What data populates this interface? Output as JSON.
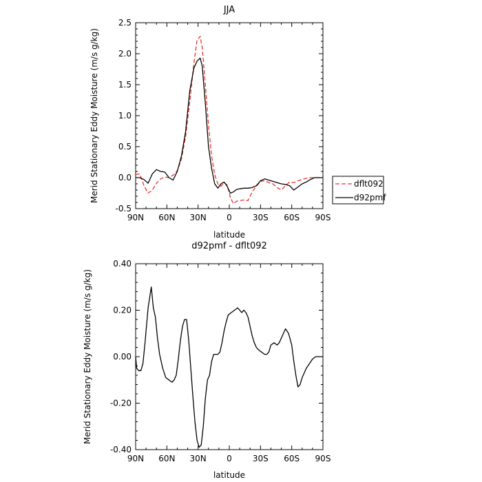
{
  "colors": {
    "dflt": "#e8322b",
    "d92": "#000000"
  },
  "chart_data": [
    {
      "type": "line",
      "title": "JJA",
      "xlabel": "latitude",
      "ylabel": "Merid Stationary Eddy Moisture (m/s g/kg)",
      "xlim": [
        -90,
        90
      ],
      "ylim": [
        -0.5,
        2.5
      ],
      "xticks": [
        -90,
        -60,
        -30,
        0,
        30,
        60,
        90
      ],
      "xtick_labels": [
        "90N",
        "60N",
        "30N",
        "0",
        "30S",
        "60S",
        "90S"
      ],
      "yticks": [
        -0.5,
        0.0,
        0.5,
        1.0,
        1.5,
        2.0,
        2.5
      ],
      "ytick_labels": [
        "-0.5",
        "0.0",
        "0.5",
        "1.0",
        "1.5",
        "2.0",
        "2.5"
      ],
      "legend_position": "right",
      "series": [
        {
          "name": "dflt092",
          "color": "#e8322b",
          "style": "dashed",
          "x": [
            -90,
            -86,
            -82,
            -78,
            -74,
            -70,
            -66,
            -62,
            -58,
            -54,
            -50,
            -46,
            -42,
            -38,
            -34,
            -31,
            -28,
            -26,
            -23,
            -20,
            -17,
            -14,
            -11,
            -8,
            -5,
            -2,
            1,
            4,
            7,
            10,
            14,
            18,
            22,
            26,
            30,
            34,
            38,
            42,
            46,
            50,
            54,
            58,
            62,
            66,
            70,
            74,
            78,
            82,
            86,
            90
          ],
          "y": [
            0.05,
            0.06,
            -0.13,
            -0.25,
            -0.2,
            -0.09,
            -0.02,
            0.01,
            0.0,
            0.04,
            0.11,
            0.3,
            0.66,
            1.23,
            1.85,
            2.22,
            2.28,
            2.1,
            1.5,
            0.85,
            0.35,
            0.05,
            -0.1,
            -0.14,
            -0.08,
            -0.12,
            -0.32,
            -0.42,
            -0.38,
            -0.37,
            -0.36,
            -0.37,
            -0.23,
            -0.14,
            -0.06,
            -0.05,
            -0.08,
            -0.1,
            -0.16,
            -0.2,
            -0.13,
            -0.07,
            -0.08,
            -0.05,
            -0.03,
            -0.01,
            0.0,
            0.0,
            0.0,
            0.0
          ]
        },
        {
          "name": "d92pmf",
          "color": "#000000",
          "style": "solid",
          "x": [
            -90,
            -86,
            -82,
            -78,
            -74,
            -70,
            -66,
            -62,
            -58,
            -54,
            -50,
            -46,
            -42,
            -38,
            -34,
            -31,
            -28,
            -26,
            -23,
            -20,
            -17,
            -14,
            -11,
            -8,
            -5,
            -2,
            1,
            4,
            7,
            10,
            14,
            18,
            22,
            26,
            30,
            34,
            38,
            42,
            46,
            50,
            54,
            58,
            62,
            66,
            70,
            74,
            78,
            82,
            86,
            90
          ],
          "y": [
            0.0,
            0.0,
            -0.03,
            -0.09,
            0.06,
            0.13,
            0.1,
            0.09,
            0.0,
            -0.04,
            0.1,
            0.35,
            0.74,
            1.4,
            1.77,
            1.88,
            1.93,
            1.8,
            1.2,
            0.5,
            0.15,
            -0.1,
            -0.17,
            -0.1,
            -0.07,
            -0.14,
            -0.25,
            -0.23,
            -0.19,
            -0.18,
            -0.17,
            -0.17,
            -0.16,
            -0.13,
            -0.05,
            -0.02,
            -0.04,
            -0.06,
            -0.08,
            -0.1,
            -0.11,
            -0.13,
            -0.2,
            -0.15,
            -0.1,
            -0.07,
            -0.03,
            0.0,
            0.0,
            0.0
          ]
        }
      ]
    },
    {
      "type": "line",
      "title": "d92pmf - dflt092",
      "xlabel": "latitude",
      "ylabel": "Merid Stationary Eddy Moisture (m/s g/kg)",
      "xlim": [
        -90,
        90
      ],
      "ylim": [
        -0.4,
        0.4
      ],
      "xticks": [
        -90,
        -60,
        -30,
        0,
        30,
        60,
        90
      ],
      "xtick_labels": [
        "90N",
        "60N",
        "30N",
        "0",
        "30S",
        "60S",
        "90S"
      ],
      "yticks": [
        -0.4,
        -0.2,
        0.0,
        0.2,
        0.4
      ],
      "ytick_labels": [
        "-0.40",
        "-0.20",
        "0.00",
        "0.20",
        "0.40"
      ],
      "series": [
        {
          "color": "#000000",
          "style": "solid",
          "x": [
            -90,
            -89,
            -87,
            -85,
            -83,
            -81,
            -78,
            -75,
            -73,
            -71,
            -69,
            -67,
            -64,
            -61,
            -58,
            -55,
            -53,
            -51,
            -49,
            -47,
            -45,
            -43,
            -41,
            -39,
            -37,
            -35,
            -33,
            -31,
            -29,
            -27,
            -25,
            -23,
            -21,
            -19,
            -17,
            -15,
            -13,
            -11,
            -9,
            -7,
            -5,
            -3,
            -1,
            2,
            5,
            8,
            10,
            12,
            14,
            16,
            18,
            20,
            22,
            24,
            26,
            28,
            31,
            34,
            36,
            38,
            40,
            43,
            46,
            48,
            51,
            54,
            57,
            60,
            62,
            64,
            66,
            68,
            70,
            72,
            74,
            77,
            80,
            83,
            86,
            90
          ],
          "y": [
            0.0,
            -0.05,
            -0.06,
            -0.06,
            -0.03,
            0.06,
            0.21,
            0.3,
            0.21,
            0.17,
            0.08,
            0.01,
            -0.05,
            -0.09,
            -0.1,
            -0.11,
            -0.1,
            -0.08,
            -0.01,
            0.07,
            0.13,
            0.16,
            0.16,
            0.07,
            -0.05,
            -0.17,
            -0.28,
            -0.36,
            -0.39,
            -0.38,
            -0.3,
            -0.18,
            -0.1,
            -0.08,
            -0.02,
            0.01,
            0.01,
            0.01,
            0.02,
            0.06,
            0.11,
            0.15,
            0.18,
            0.19,
            0.2,
            0.21,
            0.2,
            0.19,
            0.2,
            0.19,
            0.17,
            0.13,
            0.09,
            0.06,
            0.04,
            0.03,
            0.02,
            0.01,
            0.01,
            0.02,
            0.05,
            0.06,
            0.05,
            0.06,
            0.09,
            0.12,
            0.1,
            0.05,
            -0.02,
            -0.08,
            -0.13,
            -0.12,
            -0.09,
            -0.07,
            -0.05,
            -0.03,
            -0.01,
            0.0,
            0.0,
            0.0
          ]
        }
      ]
    }
  ]
}
